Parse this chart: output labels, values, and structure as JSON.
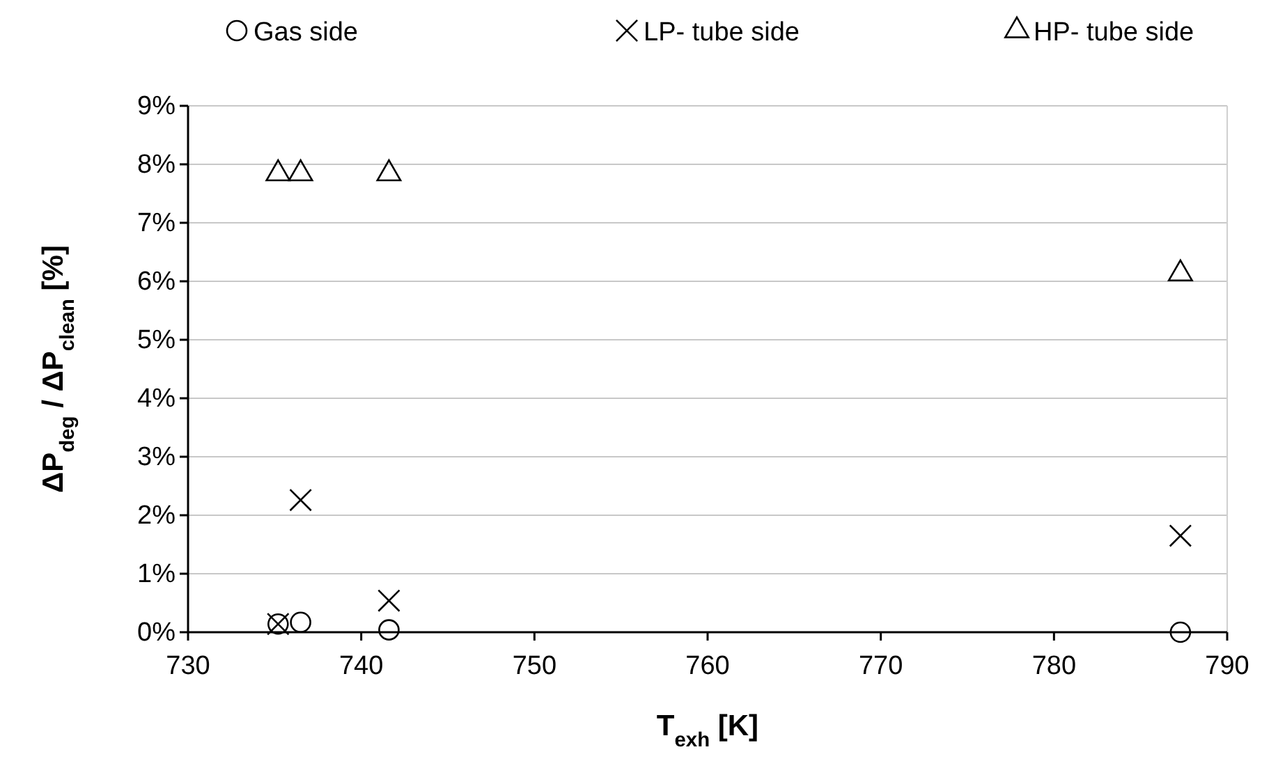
{
  "chart_data": {
    "type": "scatter",
    "xlabel": "T$_{exh}$ [K]",
    "ylabel": "ΔP$_{deg}$ / ΔP$_{clean}$ [%]",
    "xlim": [
      730,
      790
    ],
    "xticks": [
      730,
      740,
      750,
      760,
      770,
      780,
      790
    ],
    "ylim": [
      0,
      9
    ],
    "yticks": [
      {
        "value": 0,
        "label": "0%"
      },
      {
        "value": 1,
        "label": "1%"
      },
      {
        "value": 2,
        "label": "2%"
      },
      {
        "value": 3,
        "label": "3%"
      },
      {
        "value": 4,
        "label": "4%"
      },
      {
        "value": 5,
        "label": "5%"
      },
      {
        "value": 6,
        "label": "6%"
      },
      {
        "value": 7,
        "label": "7%"
      },
      {
        "value": 8,
        "label": "8%"
      },
      {
        "value": 9,
        "label": "9%"
      }
    ],
    "grid": "y",
    "legend": "top",
    "x": [
      735.2,
      736.5,
      741.6,
      787.3
    ],
    "series": [
      {
        "name": "Gas side",
        "color": "#000000",
        "marker": "circle",
        "values": [
          0.14,
          0.17,
          0.04,
          0.0
        ]
      },
      {
        "name": "LP- tube side",
        "color": "#000000",
        "marker": "cross",
        "values": [
          0.14,
          2.26,
          0.54,
          1.65
        ]
      },
      {
        "name": "HP- tube side",
        "color": "#000000",
        "marker": "triangle",
        "values": [
          7.84,
          7.84,
          7.84,
          6.13
        ]
      }
    ]
  }
}
